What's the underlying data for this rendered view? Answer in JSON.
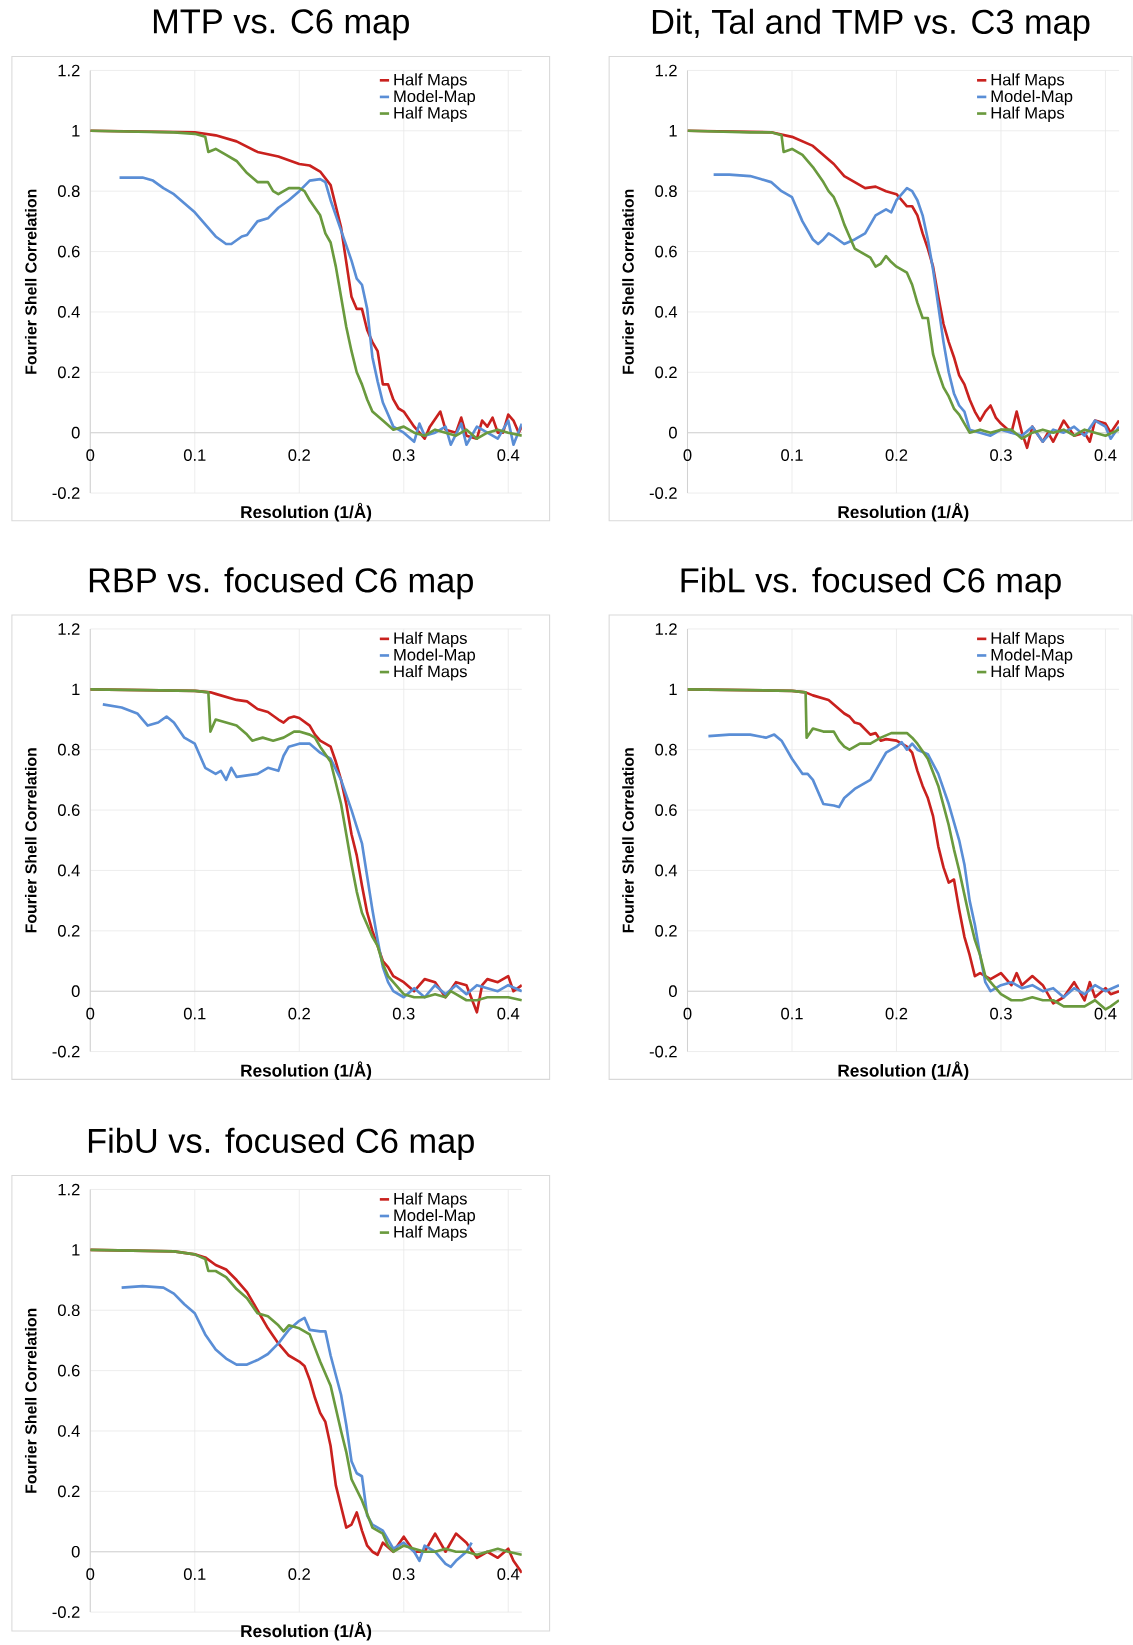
{
  "chart_data": [
    {
      "type": "line",
      "title": "MTP vs. C6 map",
      "xlabel": "Resolution (1/Å)",
      "ylabel": "Fourier Shell Correlation",
      "xlim": [
        0,
        0.413
      ],
      "ylim": [
        -0.2,
        1.2
      ],
      "xticks": [
        0,
        0.1,
        0.2,
        0.3,
        0.4
      ],
      "yticks": [
        -0.2,
        0,
        0.2,
        0.4,
        0.6,
        0.8,
        1,
        1.2
      ],
      "grid": true,
      "legend": "top right",
      "series": [
        {
          "name": "Half Maps",
          "color": "#c9211e",
          "x": [
            0,
            0.1,
            0.12,
            0.14,
            0.16,
            0.18,
            0.2,
            0.21,
            0.22,
            0.23,
            0.24,
            0.25,
            0.255,
            0.26,
            0.265,
            0.27,
            0.275,
            0.28,
            0.285,
            0.29,
            0.295,
            0.3,
            0.31,
            0.32,
            0.325,
            0.335,
            0.34,
            0.35,
            0.355,
            0.36,
            0.37,
            0.375,
            0.38,
            0.385,
            0.39,
            0.395,
            0.4,
            0.405,
            0.41,
            0.413
          ],
          "values": [
            1,
            0.995,
            0.985,
            0.965,
            0.93,
            0.915,
            0.89,
            0.885,
            0.865,
            0.82,
            0.68,
            0.45,
            0.41,
            0.41,
            0.34,
            0.3,
            0.27,
            0.16,
            0.16,
            0.11,
            0.08,
            0.07,
            0.02,
            -0.02,
            0.02,
            0.07,
            0.01,
            0.0,
            0.05,
            -0.01,
            -0.02,
            0.04,
            0.02,
            0.05,
            0.0,
            0.0,
            0.06,
            0.04,
            0.0,
            0.02
          ]
        },
        {
          "name": "Model-Map",
          "color": "#5a8ed6",
          "x": [
            0.028,
            0.05,
            0.06,
            0.07,
            0.08,
            0.09,
            0.1,
            0.11,
            0.12,
            0.13,
            0.135,
            0.145,
            0.15,
            0.16,
            0.17,
            0.18,
            0.19,
            0.2,
            0.21,
            0.22,
            0.225,
            0.23,
            0.24,
            0.25,
            0.255,
            0.26,
            0.265,
            0.27,
            0.275,
            0.28,
            0.285,
            0.29,
            0.3,
            0.31,
            0.315,
            0.32,
            0.33,
            0.34,
            0.345,
            0.355,
            0.36,
            0.37,
            0.38,
            0.39,
            0.4,
            0.405,
            0.413
          ],
          "values": [
            0.845,
            0.845,
            0.835,
            0.81,
            0.79,
            0.76,
            0.73,
            0.69,
            0.65,
            0.625,
            0.625,
            0.65,
            0.655,
            0.7,
            0.71,
            0.745,
            0.77,
            0.8,
            0.835,
            0.84,
            0.83,
            0.77,
            0.67,
            0.57,
            0.51,
            0.49,
            0.41,
            0.25,
            0.17,
            0.1,
            0.06,
            0.02,
            0.0,
            -0.03,
            0.03,
            -0.01,
            0.0,
            0.02,
            -0.04,
            0.03,
            -0.04,
            0.02,
            0.0,
            -0.02,
            0.04,
            -0.04,
            0.03
          ]
        },
        {
          "name": "Half Maps",
          "color": "#6a9a3e",
          "x": [
            0,
            0.08,
            0.1,
            0.11,
            0.113,
            0.12,
            0.13,
            0.14,
            0.15,
            0.16,
            0.17,
            0.175,
            0.18,
            0.185,
            0.19,
            0.2,
            0.205,
            0.21,
            0.22,
            0.225,
            0.23,
            0.235,
            0.24,
            0.245,
            0.25,
            0.255,
            0.26,
            0.265,
            0.27,
            0.28,
            0.29,
            0.3,
            0.31,
            0.32,
            0.33,
            0.34,
            0.35,
            0.36,
            0.37,
            0.38,
            0.39,
            0.4,
            0.413
          ],
          "values": [
            1,
            0.995,
            0.99,
            0.98,
            0.93,
            0.94,
            0.92,
            0.9,
            0.86,
            0.83,
            0.83,
            0.8,
            0.79,
            0.8,
            0.81,
            0.81,
            0.8,
            0.77,
            0.72,
            0.66,
            0.63,
            0.55,
            0.45,
            0.35,
            0.27,
            0.2,
            0.16,
            0.11,
            0.07,
            0.04,
            0.01,
            0.02,
            0.0,
            -0.01,
            0.01,
            0.0,
            -0.01,
            0.01,
            -0.02,
            0.0,
            0.01,
            0.0,
            -0.01
          ]
        }
      ]
    },
    {
      "type": "line",
      "title": "Dit, Tal and TMP vs. C3 map",
      "xlabel": "Resolution (1/Å)",
      "ylabel": "Fourier Shell Correlation",
      "xlim": [
        0,
        0.413
      ],
      "ylim": [
        -0.2,
        1.2
      ],
      "xticks": [
        0,
        0.1,
        0.2,
        0.3,
        0.4
      ],
      "yticks": [
        -0.2,
        0,
        0.2,
        0.4,
        0.6,
        0.8,
        1,
        1.2
      ],
      "grid": true,
      "legend": "top right",
      "series": [
        {
          "name": "Half Maps",
          "color": "#c9211e",
          "x": [
            0,
            0.08,
            0.1,
            0.12,
            0.14,
            0.15,
            0.16,
            0.17,
            0.18,
            0.19,
            0.2,
            0.21,
            0.215,
            0.22,
            0.225,
            0.23,
            0.235,
            0.24,
            0.245,
            0.25,
            0.255,
            0.26,
            0.265,
            0.27,
            0.275,
            0.28,
            0.285,
            0.29,
            0.295,
            0.3,
            0.31,
            0.315,
            0.32,
            0.325,
            0.33,
            0.34,
            0.345,
            0.35,
            0.36,
            0.37,
            0.38,
            0.385,
            0.39,
            0.4,
            0.405,
            0.413
          ],
          "values": [
            1,
            0.995,
            0.98,
            0.95,
            0.89,
            0.85,
            0.83,
            0.81,
            0.815,
            0.8,
            0.79,
            0.75,
            0.75,
            0.72,
            0.66,
            0.61,
            0.55,
            0.45,
            0.36,
            0.3,
            0.25,
            0.19,
            0.16,
            0.11,
            0.07,
            0.04,
            0.07,
            0.09,
            0.05,
            0.03,
            0.0,
            0.07,
            0.0,
            -0.05,
            0.02,
            -0.03,
            0.0,
            -0.03,
            0.04,
            -0.01,
            0.0,
            -0.03,
            0.04,
            0.03,
            0.0,
            0.04
          ]
        },
        {
          "name": "Model-Map",
          "color": "#5a8ed6",
          "x": [
            0.025,
            0.04,
            0.06,
            0.07,
            0.08,
            0.09,
            0.1,
            0.11,
            0.12,
            0.125,
            0.13,
            0.135,
            0.14,
            0.15,
            0.16,
            0.17,
            0.18,
            0.19,
            0.195,
            0.2,
            0.205,
            0.21,
            0.215,
            0.22,
            0.225,
            0.23,
            0.235,
            0.24,
            0.245,
            0.25,
            0.255,
            0.26,
            0.265,
            0.27,
            0.28,
            0.29,
            0.3,
            0.31,
            0.32,
            0.33,
            0.34,
            0.35,
            0.36,
            0.37,
            0.38,
            0.39,
            0.4,
            0.405,
            0.413
          ],
          "values": [
            0.855,
            0.855,
            0.85,
            0.84,
            0.83,
            0.8,
            0.78,
            0.7,
            0.64,
            0.625,
            0.64,
            0.66,
            0.65,
            0.625,
            0.64,
            0.66,
            0.72,
            0.74,
            0.73,
            0.77,
            0.79,
            0.81,
            0.8,
            0.77,
            0.72,
            0.64,
            0.54,
            0.42,
            0.3,
            0.2,
            0.13,
            0.09,
            0.07,
            0.01,
            0.0,
            -0.01,
            0.01,
            0.0,
            -0.01,
            0.02,
            -0.03,
            0.01,
            0.0,
            0.02,
            -0.01,
            0.04,
            0.02,
            -0.02,
            0.02
          ]
        },
        {
          "name": "Half Maps",
          "color": "#6a9a3e",
          "x": [
            0,
            0.06,
            0.08,
            0.09,
            0.092,
            0.1,
            0.11,
            0.12,
            0.13,
            0.135,
            0.14,
            0.145,
            0.15,
            0.155,
            0.16,
            0.17,
            0.175,
            0.18,
            0.185,
            0.19,
            0.195,
            0.2,
            0.21,
            0.215,
            0.22,
            0.225,
            0.23,
            0.235,
            0.24,
            0.245,
            0.25,
            0.255,
            0.26,
            0.265,
            0.27,
            0.28,
            0.29,
            0.3,
            0.31,
            0.32,
            0.33,
            0.34,
            0.35,
            0.36,
            0.37,
            0.38,
            0.39,
            0.4,
            0.413
          ],
          "values": [
            1,
            0.995,
            0.995,
            0.985,
            0.93,
            0.94,
            0.92,
            0.88,
            0.83,
            0.8,
            0.78,
            0.74,
            0.69,
            0.65,
            0.61,
            0.59,
            0.58,
            0.55,
            0.56,
            0.585,
            0.565,
            0.55,
            0.53,
            0.49,
            0.43,
            0.38,
            0.38,
            0.26,
            0.2,
            0.15,
            0.12,
            0.08,
            0.06,
            0.03,
            0.0,
            0.01,
            0.0,
            0.01,
            0.01,
            -0.02,
            0.0,
            0.01,
            0.0,
            0.01,
            -0.01,
            0.01,
            0.0,
            -0.01,
            0.01
          ]
        }
      ]
    },
    {
      "type": "line",
      "title": "RBP vs. focused C6 map",
      "xlabel": "Resolution (1/Å)",
      "ylabel": "Fourier Shell Correlation",
      "xlim": [
        0,
        0.413
      ],
      "ylim": [
        -0.2,
        1.2
      ],
      "xticks": [
        0,
        0.1,
        0.2,
        0.3,
        0.4
      ],
      "yticks": [
        -0.2,
        0,
        0.2,
        0.4,
        0.6,
        0.8,
        1,
        1.2
      ],
      "grid": true,
      "legend": "top right",
      "series": [
        {
          "name": "Half Maps",
          "color": "#c9211e",
          "x": [
            0,
            0.1,
            0.115,
            0.12,
            0.14,
            0.15,
            0.16,
            0.17,
            0.18,
            0.185,
            0.19,
            0.195,
            0.2,
            0.21,
            0.215,
            0.22,
            0.23,
            0.235,
            0.24,
            0.245,
            0.25,
            0.255,
            0.26,
            0.265,
            0.27,
            0.275,
            0.28,
            0.285,
            0.29,
            0.3,
            0.31,
            0.32,
            0.33,
            0.34,
            0.35,
            0.36,
            0.37,
            0.375,
            0.38,
            0.39,
            0.4,
            0.405,
            0.413
          ],
          "values": [
            1,
            0.995,
            0.99,
            0.985,
            0.965,
            0.96,
            0.935,
            0.925,
            0.9,
            0.89,
            0.905,
            0.91,
            0.905,
            0.88,
            0.85,
            0.83,
            0.81,
            0.76,
            0.7,
            0.62,
            0.52,
            0.45,
            0.35,
            0.26,
            0.2,
            0.15,
            0.1,
            0.08,
            0.05,
            0.03,
            0.0,
            0.04,
            0.03,
            -0.02,
            0.03,
            0.02,
            -0.07,
            0.02,
            0.04,
            0.03,
            0.05,
            0.0,
            0.02
          ]
        },
        {
          "name": "Model-Map",
          "color": "#5a8ed6",
          "x": [
            0.012,
            0.03,
            0.045,
            0.055,
            0.065,
            0.073,
            0.08,
            0.09,
            0.1,
            0.105,
            0.11,
            0.12,
            0.125,
            0.13,
            0.135,
            0.14,
            0.15,
            0.16,
            0.17,
            0.18,
            0.185,
            0.19,
            0.2,
            0.21,
            0.22,
            0.23,
            0.24,
            0.25,
            0.26,
            0.265,
            0.27,
            0.275,
            0.28,
            0.285,
            0.29,
            0.3,
            0.31,
            0.32,
            0.33,
            0.34,
            0.35,
            0.36,
            0.37,
            0.38,
            0.39,
            0.4,
            0.413
          ],
          "values": [
            0.95,
            0.94,
            0.92,
            0.88,
            0.89,
            0.91,
            0.89,
            0.84,
            0.82,
            0.78,
            0.74,
            0.72,
            0.73,
            0.7,
            0.74,
            0.71,
            0.715,
            0.72,
            0.74,
            0.73,
            0.78,
            0.81,
            0.82,
            0.82,
            0.79,
            0.77,
            0.7,
            0.6,
            0.49,
            0.38,
            0.27,
            0.17,
            0.08,
            0.03,
            0.0,
            -0.02,
            0.01,
            -0.02,
            0.02,
            -0.01,
            0.02,
            -0.01,
            0.02,
            0.01,
            0.0,
            0.02,
            0.0
          ]
        },
        {
          "name": "Half Maps",
          "color": "#6a9a3e",
          "x": [
            0,
            0.1,
            0.113,
            0.115,
            0.12,
            0.13,
            0.14,
            0.15,
            0.155,
            0.165,
            0.175,
            0.185,
            0.195,
            0.2,
            0.21,
            0.215,
            0.22,
            0.23,
            0.24,
            0.245,
            0.25,
            0.255,
            0.26,
            0.265,
            0.27,
            0.275,
            0.28,
            0.285,
            0.29,
            0.3,
            0.31,
            0.32,
            0.33,
            0.34,
            0.345,
            0.35,
            0.36,
            0.37,
            0.38,
            0.39,
            0.4,
            0.413
          ],
          "values": [
            1,
            0.995,
            0.99,
            0.86,
            0.9,
            0.89,
            0.88,
            0.85,
            0.83,
            0.84,
            0.83,
            0.84,
            0.86,
            0.86,
            0.85,
            0.84,
            0.81,
            0.76,
            0.62,
            0.52,
            0.42,
            0.33,
            0.26,
            0.22,
            0.18,
            0.15,
            0.09,
            0.05,
            0.03,
            -0.01,
            -0.02,
            -0.02,
            -0.01,
            -0.02,
            0.0,
            -0.01,
            -0.03,
            -0.03,
            -0.02,
            -0.02,
            -0.02,
            -0.03
          ]
        }
      ]
    },
    {
      "type": "line",
      "title": "FibL vs. focused C6 map",
      "xlabel": "Resolution (1/Å)",
      "ylabel": "Fourier Shell Correlation",
      "xlim": [
        0,
        0.413
      ],
      "ylim": [
        -0.2,
        1.2
      ],
      "xticks": [
        0,
        0.1,
        0.2,
        0.3,
        0.4
      ],
      "yticks": [
        -0.2,
        0,
        0.2,
        0.4,
        0.6,
        0.8,
        1,
        1.2
      ],
      "grid": true,
      "legend": "top right",
      "series": [
        {
          "name": "Half Maps",
          "color": "#c9211e",
          "x": [
            0,
            0.1,
            0.113,
            0.12,
            0.135,
            0.14,
            0.15,
            0.155,
            0.16,
            0.165,
            0.175,
            0.18,
            0.185,
            0.19,
            0.2,
            0.21,
            0.215,
            0.22,
            0.225,
            0.23,
            0.235,
            0.24,
            0.245,
            0.25,
            0.255,
            0.26,
            0.265,
            0.27,
            0.275,
            0.28,
            0.29,
            0.3,
            0.31,
            0.315,
            0.32,
            0.33,
            0.34,
            0.35,
            0.36,
            0.37,
            0.38,
            0.385,
            0.39,
            0.4,
            0.405,
            0.413
          ],
          "values": [
            1,
            0.995,
            0.99,
            0.98,
            0.965,
            0.95,
            0.92,
            0.91,
            0.89,
            0.885,
            0.85,
            0.855,
            0.83,
            0.835,
            0.83,
            0.81,
            0.79,
            0.73,
            0.68,
            0.64,
            0.58,
            0.48,
            0.41,
            0.36,
            0.37,
            0.27,
            0.18,
            0.12,
            0.05,
            0.06,
            0.04,
            0.06,
            0.02,
            0.06,
            0.02,
            0.05,
            0.02,
            -0.04,
            -0.02,
            0.03,
            -0.03,
            0.03,
            -0.02,
            0.01,
            -0.01,
            0.0
          ]
        },
        {
          "name": "Model-Map",
          "color": "#5a8ed6",
          "x": [
            0.02,
            0.04,
            0.06,
            0.075,
            0.083,
            0.09,
            0.1,
            0.11,
            0.115,
            0.12,
            0.13,
            0.14,
            0.145,
            0.15,
            0.16,
            0.17,
            0.175,
            0.18,
            0.19,
            0.2,
            0.205,
            0.21,
            0.215,
            0.22,
            0.23,
            0.24,
            0.25,
            0.26,
            0.265,
            0.27,
            0.275,
            0.28,
            0.285,
            0.29,
            0.3,
            0.31,
            0.32,
            0.33,
            0.34,
            0.35,
            0.36,
            0.37,
            0.38,
            0.39,
            0.4,
            0.413
          ],
          "values": [
            0.845,
            0.85,
            0.85,
            0.84,
            0.85,
            0.83,
            0.77,
            0.72,
            0.72,
            0.7,
            0.62,
            0.615,
            0.61,
            0.64,
            0.67,
            0.69,
            0.7,
            0.73,
            0.79,
            0.81,
            0.825,
            0.8,
            0.82,
            0.8,
            0.785,
            0.72,
            0.62,
            0.5,
            0.42,
            0.3,
            0.22,
            0.12,
            0.03,
            0.0,
            0.02,
            0.03,
            0.01,
            0.02,
            0.0,
            0.01,
            -0.02,
            0.01,
            -0.01,
            0.02,
            0.0,
            0.02
          ]
        },
        {
          "name": "Half Maps",
          "color": "#6a9a3e",
          "x": [
            0,
            0.1,
            0.113,
            0.114,
            0.12,
            0.13,
            0.14,
            0.145,
            0.15,
            0.155,
            0.165,
            0.175,
            0.185,
            0.195,
            0.21,
            0.215,
            0.22,
            0.23,
            0.24,
            0.25,
            0.255,
            0.26,
            0.265,
            0.27,
            0.275,
            0.28,
            0.285,
            0.29,
            0.3,
            0.31,
            0.32,
            0.33,
            0.34,
            0.35,
            0.36,
            0.37,
            0.38,
            0.39,
            0.4,
            0.405,
            0.413
          ],
          "values": [
            1,
            0.995,
            0.99,
            0.84,
            0.87,
            0.86,
            0.86,
            0.83,
            0.81,
            0.8,
            0.82,
            0.82,
            0.84,
            0.855,
            0.855,
            0.84,
            0.82,
            0.77,
            0.68,
            0.55,
            0.47,
            0.4,
            0.32,
            0.24,
            0.17,
            0.12,
            0.05,
            0.03,
            -0.01,
            -0.03,
            -0.03,
            -0.02,
            -0.03,
            -0.03,
            -0.05,
            -0.05,
            -0.05,
            -0.03,
            -0.06,
            -0.05,
            -0.03
          ]
        }
      ]
    },
    {
      "type": "line",
      "title": "FibU vs. focused C6 map",
      "xlabel": "Resolution (1/Å)",
      "ylabel": "Fourier Shell Correlation",
      "xlim": [
        0,
        0.413
      ],
      "ylim": [
        -0.2,
        1.2
      ],
      "xticks": [
        0,
        0.1,
        0.2,
        0.3,
        0.4
      ],
      "yticks": [
        -0.2,
        0,
        0.2,
        0.4,
        0.6,
        0.8,
        1,
        1.2
      ],
      "grid": true,
      "legend": "top right",
      "series": [
        {
          "name": "Half Maps",
          "color": "#c9211e",
          "x": [
            0,
            0.08,
            0.1,
            0.11,
            0.12,
            0.13,
            0.14,
            0.15,
            0.16,
            0.17,
            0.18,
            0.19,
            0.2,
            0.205,
            0.21,
            0.215,
            0.22,
            0.225,
            0.23,
            0.235,
            0.24,
            0.245,
            0.25,
            0.255,
            0.26,
            0.265,
            0.27,
            0.275,
            0.28,
            0.29,
            0.3,
            0.31,
            0.32,
            0.33,
            0.34,
            0.35,
            0.36,
            0.37,
            0.38,
            0.39,
            0.4,
            0.405,
            0.413
          ],
          "values": [
            1,
            0.995,
            0.985,
            0.975,
            0.95,
            0.935,
            0.9,
            0.86,
            0.8,
            0.74,
            0.69,
            0.65,
            0.63,
            0.615,
            0.57,
            0.51,
            0.46,
            0.43,
            0.35,
            0.22,
            0.15,
            0.08,
            0.09,
            0.13,
            0.07,
            0.02,
            0.0,
            -0.01,
            0.03,
            0.0,
            0.05,
            0.0,
            0.0,
            0.06,
            0.0,
            0.06,
            0.03,
            -0.02,
            0.0,
            -0.02,
            0.01,
            -0.03,
            -0.07
          ]
        },
        {
          "name": "Model-Map",
          "color": "#5a8ed6",
          "x": [
            0.03,
            0.05,
            0.07,
            0.08,
            0.09,
            0.1,
            0.11,
            0.12,
            0.13,
            0.14,
            0.15,
            0.16,
            0.17,
            0.18,
            0.19,
            0.2,
            0.205,
            0.21,
            0.22,
            0.225,
            0.23,
            0.24,
            0.245,
            0.25,
            0.255,
            0.26,
            0.265,
            0.27,
            0.28,
            0.285,
            0.29,
            0.3,
            0.31,
            0.315,
            0.32,
            0.33,
            0.34,
            0.345,
            0.35,
            0.36,
            0.365
          ],
          "values": [
            0.875,
            0.88,
            0.875,
            0.855,
            0.82,
            0.79,
            0.72,
            0.67,
            0.64,
            0.62,
            0.62,
            0.635,
            0.655,
            0.69,
            0.735,
            0.765,
            0.775,
            0.735,
            0.73,
            0.73,
            0.65,
            0.52,
            0.42,
            0.3,
            0.26,
            0.25,
            0.12,
            0.09,
            0.07,
            0.04,
            0.01,
            0.03,
            0.0,
            -0.03,
            0.02,
            0.0,
            -0.04,
            -0.05,
            -0.03,
            0.0,
            0.03
          ]
        },
        {
          "name": "Half Maps",
          "color": "#6a9a3e",
          "x": [
            0,
            0.08,
            0.1,
            0.11,
            0.113,
            0.12,
            0.13,
            0.14,
            0.15,
            0.16,
            0.17,
            0.18,
            0.185,
            0.19,
            0.2,
            0.21,
            0.22,
            0.23,
            0.24,
            0.245,
            0.25,
            0.26,
            0.27,
            0.28,
            0.285,
            0.29,
            0.3,
            0.31,
            0.32,
            0.33,
            0.34,
            0.35,
            0.36,
            0.37,
            0.38,
            0.39,
            0.4,
            0.413
          ],
          "values": [
            1,
            0.995,
            0.985,
            0.97,
            0.93,
            0.93,
            0.91,
            0.87,
            0.84,
            0.79,
            0.78,
            0.75,
            0.73,
            0.75,
            0.74,
            0.72,
            0.63,
            0.55,
            0.4,
            0.33,
            0.24,
            0.17,
            0.08,
            0.06,
            0.02,
            0.0,
            0.02,
            0.01,
            0.0,
            0.0,
            0.01,
            0.0,
            0.0,
            -0.01,
            0.0,
            0.01,
            0.0,
            -0.01
          ]
        }
      ]
    }
  ]
}
